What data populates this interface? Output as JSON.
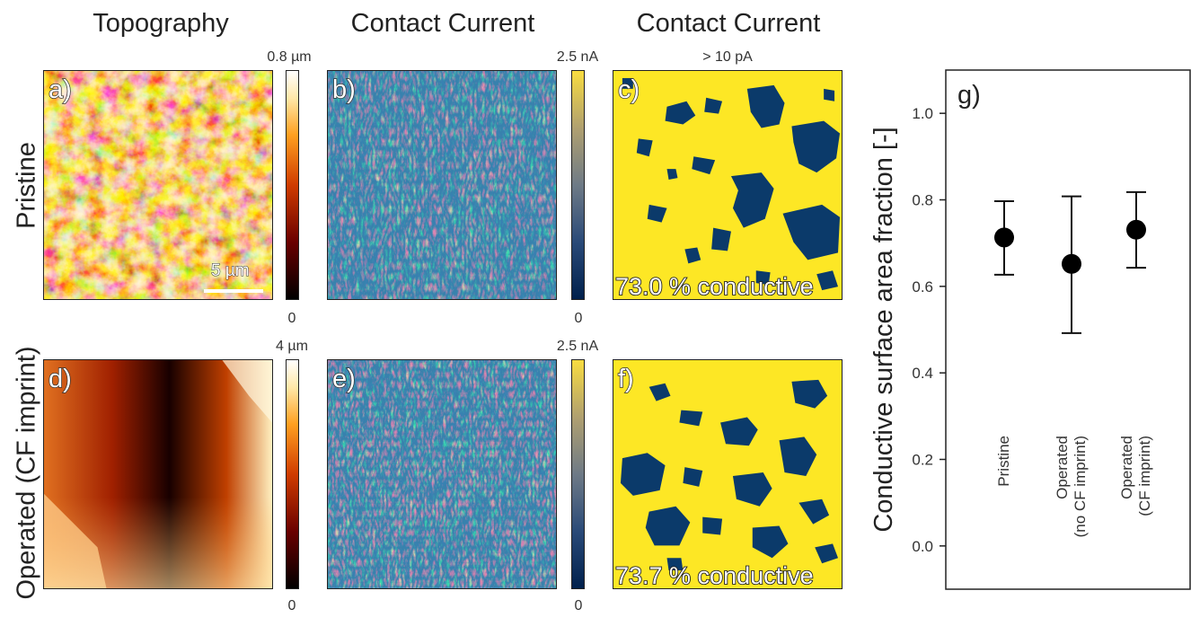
{
  "columns": {
    "topography": "Topography",
    "current_b": "Contact Current",
    "current_c": "Contact Current"
  },
  "rows": {
    "pristine": "Pristine",
    "operated": "Operated (CF imprint)"
  },
  "panels": {
    "a": "a)",
    "b": "b)",
    "c": "c)",
    "d": "d)",
    "e": "e)",
    "f": "f)",
    "g": "g)"
  },
  "scale_bar": "5 µm",
  "colorbars": {
    "topo_top_max": "0.8 µm",
    "topo_top_min": "0",
    "cur_top_max": "2.5 nA",
    "cur_top_min": "0",
    "threshold": "> 10 pA",
    "topo_bot_max": "4 µm",
    "topo_bot_min": "0",
    "cur_bot_max": "2.5 nA",
    "cur_bot_min": "0"
  },
  "conductive": {
    "c": "73.0 % conductive",
    "f": "73.7 % conductive"
  },
  "colors": {
    "afmhot_dark": "#1a0000",
    "afmhot_mid": "#c04010",
    "afmhot_light": "#ffe8a8",
    "cividis_dark": "#0b3a6a",
    "cividis_light": "#f0d040",
    "binary_yellow": "#fde725",
    "binary_blue": "#0b3a6a"
  },
  "chart_data": {
    "type": "scatter",
    "categories": [
      "Pristine",
      "Operated\n(no CF imprint)",
      "Operated\n(CF imprint)"
    ],
    "category_lines": [
      [
        "Pristine"
      ],
      [
        "Operated",
        "(no CF imprint)"
      ],
      [
        "Operated",
        "(CF imprint)"
      ]
    ],
    "values": [
      0.713,
      0.652,
      0.731
    ],
    "error_low": [
      0.627,
      0.492,
      0.643
    ],
    "error_high": [
      0.797,
      0.808,
      0.818
    ],
    "ylabel": "Conductive surface area fraction [-]",
    "ylim": [
      -0.1,
      1.1
    ],
    "yticks": [
      "0.0",
      "0.2",
      "0.4",
      "0.6",
      "0.8",
      "1.0"
    ],
    "grid": false
  }
}
